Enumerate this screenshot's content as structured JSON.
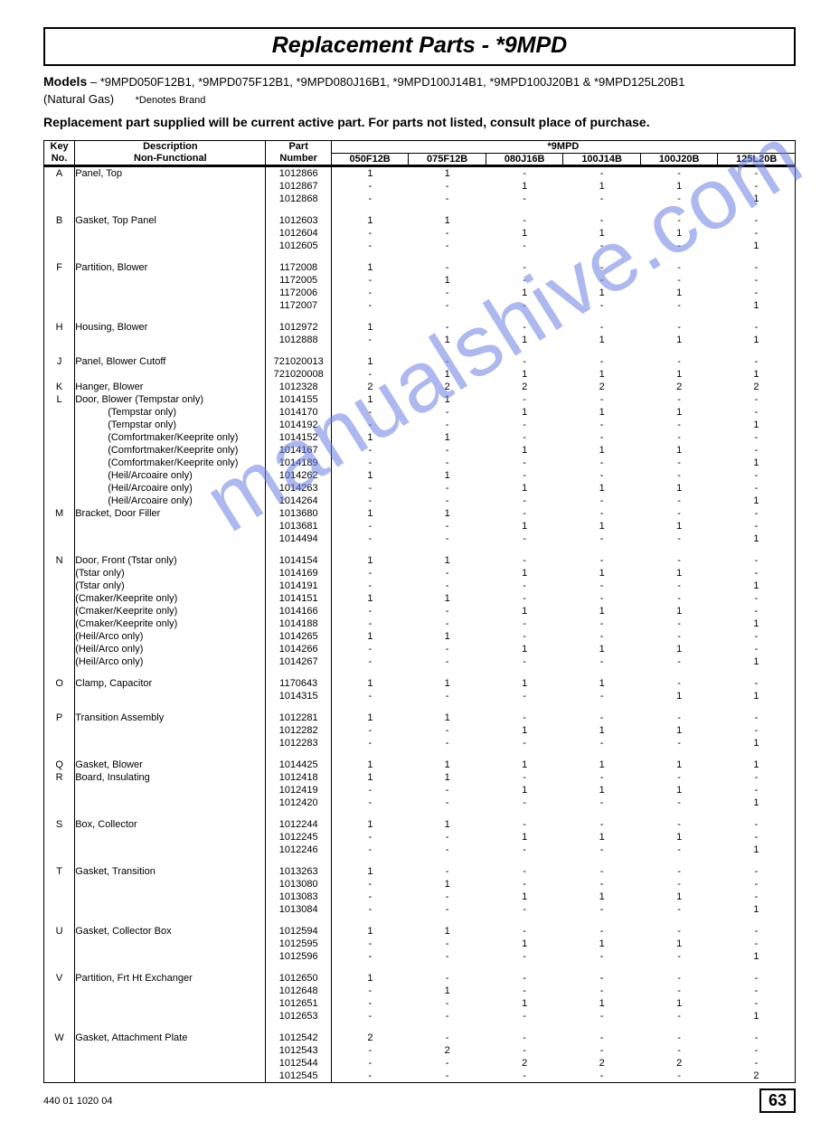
{
  "title": "Replacement Parts  -  *9MPD",
  "models_label": "Models",
  "models_text": " – *9MPD050F12B1, *9MPD075F12B1, *9MPD080J16B1, *9MPD100J14B1, *9MPD100J20B1 & *9MPD125L20B1",
  "natgas": "(Natural Gas)",
  "denotes": "*Denotes Brand",
  "note": "Replacement part supplied will be current active part.  For parts not listed, consult place of purchase.",
  "header": {
    "key": "Key",
    "no": "No.",
    "desc": "Description",
    "nonfunc": "Non-Functional",
    "part": "Part",
    "number": "Number",
    "group": "*9MPD",
    "models": [
      "050F12B",
      "075F12B",
      "080J16B",
      "100J14B",
      "100J20B",
      "125L20B"
    ]
  },
  "watermark": "manualshive.com",
  "footer_code": "440 01 1020 04",
  "page_number": "63",
  "groups": [
    {
      "key": "A",
      "rows": [
        {
          "desc": "Panel, Top",
          "part": "1012866",
          "v": [
            "1",
            "1",
            "-",
            "-",
            "-",
            "-"
          ]
        },
        {
          "desc": "",
          "part": "1012867",
          "v": [
            "-",
            "-",
            "1",
            "1",
            "1",
            "-"
          ]
        },
        {
          "desc": "",
          "part": "1012868",
          "v": [
            "-",
            "-",
            "-",
            "-",
            "-",
            "1"
          ]
        }
      ]
    },
    {
      "key": "B",
      "rows": [
        {
          "desc": "Gasket, Top Panel",
          "part": "1012603",
          "v": [
            "1",
            "1",
            "-",
            "-",
            "-",
            "-"
          ]
        },
        {
          "desc": "",
          "part": "1012604",
          "v": [
            "-",
            "-",
            "1",
            "1",
            "1",
            "-"
          ]
        },
        {
          "desc": "",
          "part": "1012605",
          "v": [
            "-",
            "-",
            "-",
            "-",
            "-",
            "1"
          ]
        }
      ]
    },
    {
      "key": "F",
      "rows": [
        {
          "desc": "Partition, Blower",
          "part": "1172008",
          "v": [
            "1",
            "-",
            "-",
            "-",
            "-",
            "-"
          ]
        },
        {
          "desc": "",
          "part": "1172005",
          "v": [
            "-",
            "1",
            "-",
            "-",
            "-",
            "-"
          ]
        },
        {
          "desc": "",
          "part": "1172006",
          "v": [
            "-",
            "-",
            "1",
            "1",
            "1",
            "-"
          ]
        },
        {
          "desc": "",
          "part": "1172007",
          "v": [
            "-",
            "-",
            "-",
            "-",
            "-",
            "1"
          ]
        }
      ]
    },
    {
      "key": "H",
      "rows": [
        {
          "desc": "Housing, Blower",
          "part": "1012972",
          "v": [
            "1",
            "-",
            "-",
            "-",
            "-",
            "-"
          ]
        },
        {
          "desc": "",
          "part": "1012888",
          "v": [
            "-",
            "1",
            "1",
            "1",
            "1",
            "1"
          ]
        }
      ]
    },
    {
      "key": "J",
      "rows": [
        {
          "desc": "Panel, Blower Cutoff",
          "part": "721020013",
          "v": [
            "1",
            "-",
            "-",
            "-",
            "-",
            "-"
          ]
        },
        {
          "desc": "",
          "part": "721020008",
          "v": [
            "-",
            "1",
            "1",
            "1",
            "1",
            "1"
          ]
        }
      ]
    },
    {
      "key": "K",
      "rows": [
        {
          "desc": "Hanger, Blower",
          "part": "1012328",
          "v": [
            "2",
            "2",
            "2",
            "2",
            "2",
            "2"
          ]
        }
      ]
    },
    {
      "key": "L",
      "rows": [
        {
          "desc": "Door, Blower (Tempstar only)",
          "part": "1014155",
          "v": [
            "1",
            "1",
            "-",
            "-",
            "-",
            "-"
          ]
        },
        {
          "desc": "(Tempstar only)",
          "indent": true,
          "part": "1014170",
          "v": [
            "-",
            "-",
            "1",
            "1",
            "1",
            "-"
          ]
        },
        {
          "desc": "(Tempstar only)",
          "indent": true,
          "part": "1014192",
          "v": [
            "-",
            "-",
            "-",
            "-",
            "-",
            "1"
          ]
        },
        {
          "desc": "(Comfortmaker/Keeprite only)",
          "indent": true,
          "part": "1014152",
          "v": [
            "1",
            "1",
            "-",
            "-",
            "-",
            "-"
          ]
        },
        {
          "desc": "(Comfortmaker/Keeprite only)",
          "indent": true,
          "part": "1014167",
          "v": [
            "-",
            "-",
            "1",
            "1",
            "1",
            "-"
          ]
        },
        {
          "desc": "(Comfortmaker/Keeprite only)",
          "indent": true,
          "part": "1014189",
          "v": [
            "-",
            "-",
            "-",
            "-",
            "-",
            "1"
          ]
        },
        {
          "desc": "(Heil/Arcoaire only)",
          "indent": true,
          "part": "1014262",
          "v": [
            "1",
            "1",
            "-",
            "-",
            "-",
            "-"
          ]
        },
        {
          "desc": "(Heil/Arcoaire only)",
          "indent": true,
          "part": "1014263",
          "v": [
            "-",
            "-",
            "1",
            "1",
            "1",
            "-"
          ]
        },
        {
          "desc": "(Heil/Arcoaire only)",
          "indent": true,
          "part": "1014264",
          "v": [
            "-",
            "-",
            "-",
            "-",
            "-",
            "1"
          ]
        }
      ]
    },
    {
      "key": "M",
      "rows": [
        {
          "desc": "Bracket, Door Filler",
          "part": "1013680",
          "v": [
            "1",
            "1",
            "-",
            "-",
            "-",
            "-"
          ]
        },
        {
          "desc": "",
          "part": "1013681",
          "v": [
            "-",
            "-",
            "1",
            "1",
            "1",
            "-"
          ]
        },
        {
          "desc": "",
          "part": "1014494",
          "v": [
            "-",
            "-",
            "-",
            "-",
            "-",
            "1"
          ]
        }
      ]
    },
    {
      "key": "N",
      "rows": [
        {
          "desc": "Door, Front (Tstar only)",
          "part": "1014154",
          "v": [
            "1",
            "1",
            "-",
            "-",
            "-",
            "-"
          ]
        },
        {
          "desc": "(Tstar only)",
          "part": "1014169",
          "v": [
            "-",
            "-",
            "1",
            "1",
            "1",
            "-"
          ]
        },
        {
          "desc": "(Tstar only)",
          "part": "1014191",
          "v": [
            "-",
            "-",
            "-",
            "-",
            "-",
            "1"
          ]
        },
        {
          "desc": "(Cmaker/Keeprite only)",
          "part": "1014151",
          "v": [
            "1",
            "1",
            "-",
            "-",
            "-",
            "-"
          ]
        },
        {
          "desc": "(Cmaker/Keeprite only)",
          "part": "1014166",
          "v": [
            "-",
            "-",
            "1",
            "1",
            "1",
            "-"
          ]
        },
        {
          "desc": "(Cmaker/Keeprite only)",
          "part": "1014188",
          "v": [
            "-",
            "-",
            "-",
            "-",
            "-",
            "1"
          ]
        },
        {
          "desc": "(Heil/Arco only)",
          "part": "1014265",
          "v": [
            "1",
            "1",
            "-",
            "-",
            "-",
            "-"
          ]
        },
        {
          "desc": "(Heil/Arco only)",
          "part": "1014266",
          "v": [
            "-",
            "-",
            "1",
            "1",
            "1",
            "-"
          ]
        },
        {
          "desc": "(Heil/Arco only)",
          "part": "1014267",
          "v": [
            "-",
            "-",
            "-",
            "-",
            "-",
            "1"
          ]
        }
      ]
    },
    {
      "key": "O",
      "rows": [
        {
          "desc": "Clamp, Capacitor",
          "part": "1170643",
          "v": [
            "1",
            "1",
            "1",
            "1",
            "-",
            "-"
          ]
        },
        {
          "desc": "",
          "part": "1014315",
          "v": [
            "-",
            "-",
            "-",
            "-",
            "1",
            "1"
          ]
        }
      ]
    },
    {
      "key": "P",
      "rows": [
        {
          "desc": "Transition Assembly",
          "part": "1012281",
          "v": [
            "1",
            "1",
            "-",
            "-",
            "-",
            "-"
          ]
        },
        {
          "desc": "",
          "part": "1012282",
          "v": [
            "-",
            "-",
            "1",
            "1",
            "1",
            "-"
          ]
        },
        {
          "desc": "",
          "part": "1012283",
          "v": [
            "-",
            "-",
            "-",
            "-",
            "-",
            "1"
          ]
        }
      ]
    },
    {
      "key": "Q",
      "rows": [
        {
          "desc": "Gasket, Blower",
          "part": "1014425",
          "v": [
            "1",
            "1",
            "1",
            "1",
            "1",
            "1"
          ]
        }
      ]
    },
    {
      "key": "R",
      "rows": [
        {
          "desc": "Board, Insulating",
          "part": "1012418",
          "v": [
            "1",
            "1",
            "-",
            "-",
            "-",
            "-"
          ]
        },
        {
          "desc": "",
          "part": "1012419",
          "v": [
            "-",
            "-",
            "1",
            "1",
            "1",
            "-"
          ]
        },
        {
          "desc": "",
          "part": "1012420",
          "v": [
            "-",
            "-",
            "-",
            "-",
            "-",
            "1"
          ]
        }
      ]
    },
    {
      "key": "S",
      "rows": [
        {
          "desc": "Box, Collector",
          "part": "1012244",
          "v": [
            "1",
            "1",
            "-",
            "-",
            "-",
            "-"
          ]
        },
        {
          "desc": "",
          "part": "1012245",
          "v": [
            "-",
            "-",
            "1",
            "1",
            "1",
            "-"
          ]
        },
        {
          "desc": "",
          "part": "1012246",
          "v": [
            "-",
            "-",
            "-",
            "-",
            "-",
            "1"
          ]
        }
      ]
    },
    {
      "key": "T",
      "rows": [
        {
          "desc": "Gasket, Transition",
          "part": "1013263",
          "v": [
            "1",
            "-",
            "-",
            "-",
            "-",
            "-"
          ]
        },
        {
          "desc": "",
          "part": "1013080",
          "v": [
            "-",
            "1",
            "-",
            "-",
            "-",
            "-"
          ]
        },
        {
          "desc": "",
          "part": "1013083",
          "v": [
            "-",
            "-",
            "1",
            "1",
            "1",
            "-"
          ]
        },
        {
          "desc": "",
          "part": "1013084",
          "v": [
            "-",
            "-",
            "-",
            "-",
            "-",
            "1"
          ]
        }
      ]
    },
    {
      "key": "U",
      "rows": [
        {
          "desc": "Gasket, Collector Box",
          "part": "1012594",
          "v": [
            "1",
            "1",
            "-",
            "-",
            "-",
            "-"
          ]
        },
        {
          "desc": "",
          "part": "1012595",
          "v": [
            "-",
            "-",
            "1",
            "1",
            "1",
            "-"
          ]
        },
        {
          "desc": "",
          "part": "1012596",
          "v": [
            "-",
            "-",
            "-",
            "-",
            "-",
            "1"
          ]
        }
      ]
    },
    {
      "key": "V",
      "rows": [
        {
          "desc": "Partition, Frt Ht Exchanger",
          "part": "1012650",
          "v": [
            "1",
            "-",
            "-",
            "-",
            "-",
            "-"
          ]
        },
        {
          "desc": "",
          "part": "1012648",
          "v": [
            "-",
            "1",
            "-",
            "-",
            "-",
            "-"
          ]
        },
        {
          "desc": "",
          "part": "1012651",
          "v": [
            "-",
            "-",
            "1",
            "1",
            "1",
            "-"
          ]
        },
        {
          "desc": "",
          "part": "1012653",
          "v": [
            "-",
            "-",
            "-",
            "-",
            "-",
            "1"
          ]
        }
      ]
    },
    {
      "key": "W",
      "rows": [
        {
          "desc": "Gasket, Attachment Plate",
          "part": "1012542",
          "v": [
            "2",
            "-",
            "-",
            "-",
            "-",
            "-"
          ]
        },
        {
          "desc": "",
          "part": "1012543",
          "v": [
            "-",
            "2",
            "-",
            "-",
            "-",
            "-"
          ]
        },
        {
          "desc": "",
          "part": "1012544",
          "v": [
            "-",
            "-",
            "2",
            "2",
            "2",
            "-"
          ]
        },
        {
          "desc": "",
          "part": "1012545",
          "v": [
            "-",
            "-",
            "-",
            "-",
            "-",
            "2"
          ]
        }
      ]
    }
  ]
}
